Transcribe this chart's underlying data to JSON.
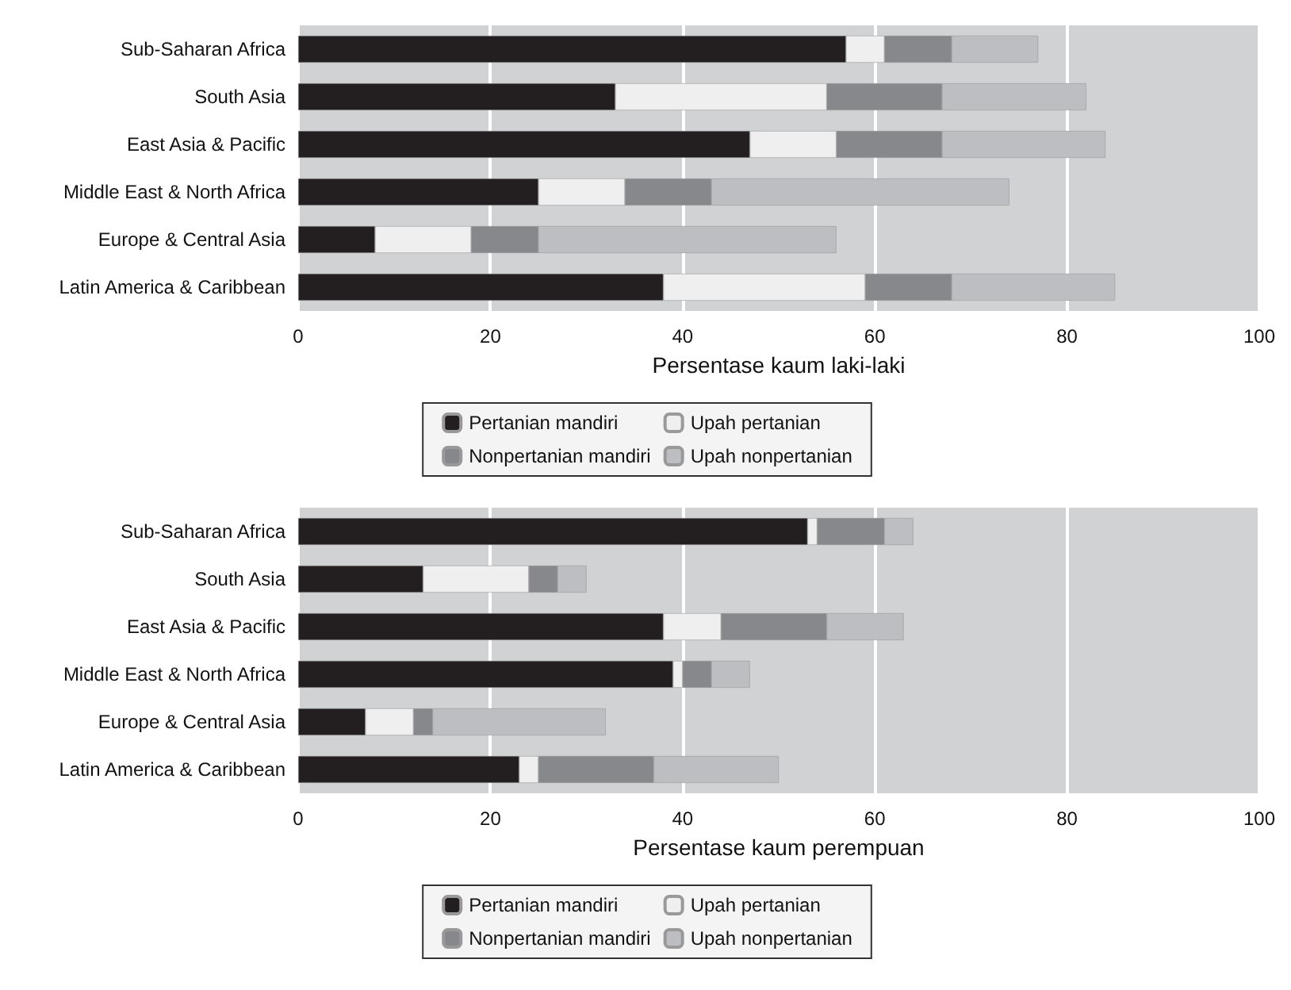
{
  "chart_data": [
    {
      "type": "bar",
      "orientation": "horizontal",
      "stacked": true,
      "xlabel": "Persentase kaum laki-laki",
      "categories": [
        "Sub-Saharan Africa",
        "South Asia",
        "East Asia & Pacific",
        "Middle East & North Africa",
        "Europe & Central Asia",
        "Latin America & Caribbean"
      ],
      "series": [
        {
          "name": "Pertanian mandiri",
          "color": "#231f20",
          "values": [
            57,
            33,
            47,
            25,
            8,
            38
          ]
        },
        {
          "name": "Upah pertanian",
          "color": "#efefef",
          "values": [
            4,
            22,
            9,
            9,
            10,
            21
          ]
        },
        {
          "name": "Nonpertanian mandiri",
          "color": "#87888c",
          "values": [
            7,
            12,
            11,
            9,
            7,
            9
          ]
        },
        {
          "name": "Upah nonpertanian",
          "color": "#bdbec2",
          "values": [
            9,
            15,
            17,
            31,
            31,
            17
          ]
        }
      ],
      "xlim": [
        0,
        100
      ],
      "xticks": [
        0,
        20,
        40,
        60,
        80,
        100
      ],
      "grid": "x",
      "legend": "bottom"
    },
    {
      "type": "bar",
      "orientation": "horizontal",
      "stacked": true,
      "xlabel": "Persentase kaum perempuan",
      "categories": [
        "Sub-Saharan Africa",
        "South Asia",
        "East Asia & Pacific",
        "Middle East & North Africa",
        "Europe & Central Asia",
        "Latin America & Caribbean"
      ],
      "series": [
        {
          "name": "Pertanian mandiri",
          "color": "#231f20",
          "values": [
            53,
            13,
            38,
            39,
            7,
            23
          ]
        },
        {
          "name": "Upah pertanian",
          "color": "#efefef",
          "values": [
            1,
            11,
            6,
            1,
            5,
            2
          ]
        },
        {
          "name": "Nonpertanian mandiri",
          "color": "#87888c",
          "values": [
            7,
            3,
            11,
            3,
            2,
            12
          ]
        },
        {
          "name": "Upah nonpertanian",
          "color": "#bdbec2",
          "values": [
            3,
            3,
            8,
            4,
            18,
            13
          ]
        }
      ],
      "xlim": [
        0,
        100
      ],
      "xticks": [
        0,
        20,
        40,
        60,
        80,
        100
      ],
      "grid": "x",
      "legend": "bottom"
    }
  ]
}
